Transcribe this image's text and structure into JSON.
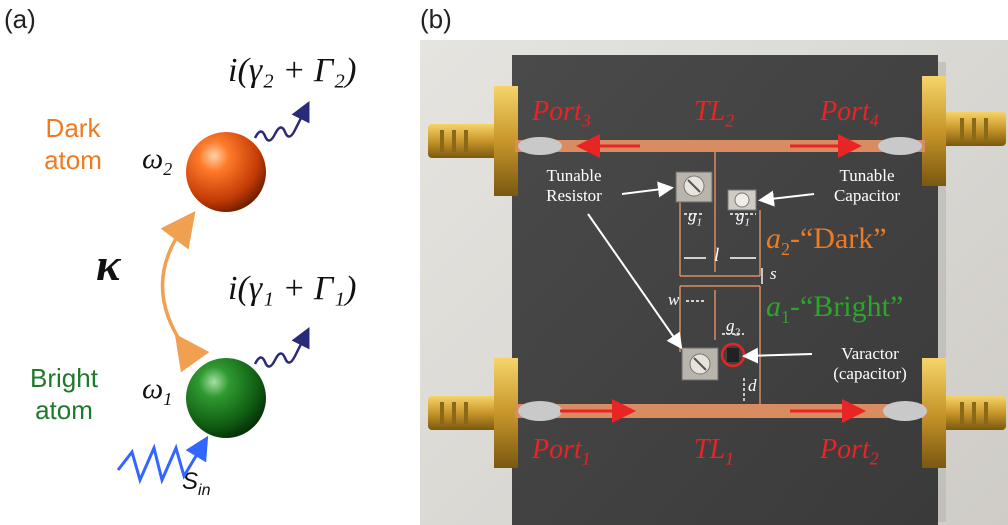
{
  "panel_a": {
    "label": "(a)",
    "dark_atom": "Dark\natom",
    "bright_atom": "Bright\natom",
    "omega2": "ω",
    "omega2_sub": "2",
    "omega1": "ω",
    "omega1_sub": "1",
    "kappa": "κ",
    "decay2_i": "i",
    "decay2_expr": "(γ₂ + Γ₂)",
    "decay1_i": "i",
    "decay1_expr": "(γ₁ + Γ₁)",
    "s_in": "S",
    "s_in_sub": "in"
  },
  "panel_b": {
    "label": "(b)",
    "port3": "Port",
    "port3_sub": "3",
    "port4": "Port",
    "port4_sub": "4",
    "port1": "Port",
    "port1_sub": "1",
    "port2": "Port",
    "port2_sub": "2",
    "tl2": "TL",
    "tl2_sub": "2",
    "tl1": "TL",
    "tl1_sub": "1",
    "tunable_resistor": "Tunable\nResistor",
    "tunable_capacitor": "Tunable\nCapacitor",
    "dark_label_a": "a",
    "dark_label_sub": "2",
    "dark_label_text": "-“Dark”",
    "bright_label_a": "a",
    "bright_label_sub": "1",
    "bright_label_text": "-“Bright”",
    "varactor": "Varactor\n(capacitor)",
    "g1_left": "g",
    "g1_right": "g",
    "g_sub1": "1",
    "g2": "g",
    "g_sub2": "2",
    "l": "l",
    "s": "s",
    "w": "w",
    "d": "d"
  },
  "colors": {
    "dark_atom": "#ee7a22",
    "bright_atom": "#1d7a2a",
    "port_text": "#e82424",
    "wave_blue": "#3366ff",
    "coupling": "#f0a050"
  }
}
